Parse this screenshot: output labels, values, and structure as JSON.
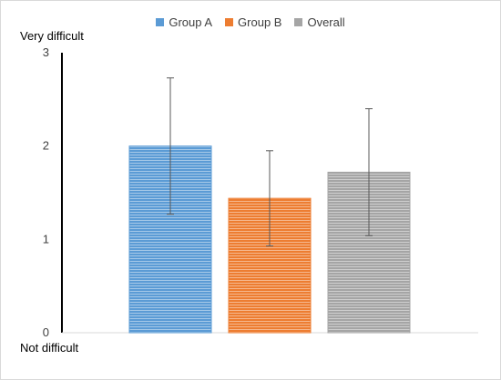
{
  "chart_data": {
    "type": "bar",
    "categories": [
      "Group A",
      "Group B",
      "Overall"
    ],
    "series": [
      {
        "name": "Group A",
        "value": 2.0,
        "error_low": 1.27,
        "error_high": 2.73,
        "color": "#5B9BD5"
      },
      {
        "name": "Group B",
        "value": 1.44,
        "error_low": 0.93,
        "error_high": 1.95,
        "color": "#ED7D31"
      },
      {
        "name": "Overall",
        "value": 1.72,
        "error_low": 1.04,
        "error_high": 2.4,
        "color": "#A5A5A5"
      }
    ],
    "y_ticks": [
      "0",
      "1",
      "2",
      "3"
    ],
    "ylim": [
      0,
      3
    ],
    "legend_position": "top",
    "grid": false,
    "top_annotation": "Very difficult",
    "bottom_annotation": "Not difficult"
  }
}
